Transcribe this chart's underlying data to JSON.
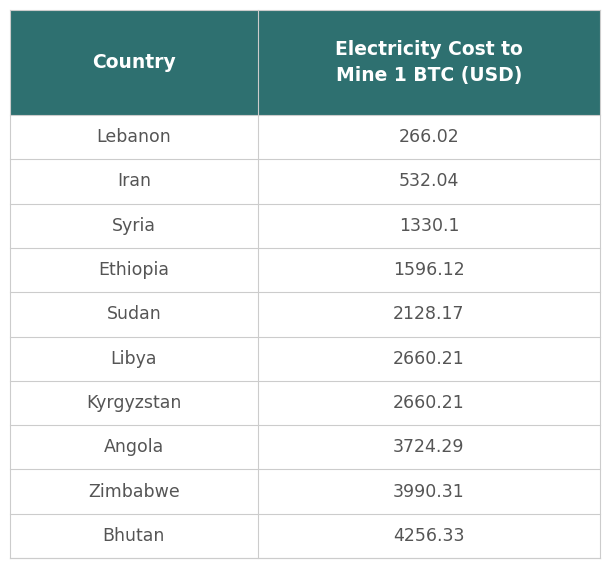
{
  "header": [
    "Country",
    "Electricity Cost to\nMine 1 BTC (USD)"
  ],
  "rows": [
    [
      "Lebanon",
      "266.02"
    ],
    [
      "Iran",
      "532.04"
    ],
    [
      "Syria",
      "1330.1"
    ],
    [
      "Ethiopia",
      "1596.12"
    ],
    [
      "Sudan",
      "2128.17"
    ],
    [
      "Libya",
      "2660.21"
    ],
    [
      "Kyrgyzstan",
      "2660.21"
    ],
    [
      "Angola",
      "3724.29"
    ],
    [
      "Zimbabwe",
      "3990.31"
    ],
    [
      "Bhutan",
      "4256.33"
    ]
  ],
  "header_bg_color": "#2e7070",
  "header_text_color": "#ffffff",
  "row_text_color": "#555555",
  "grid_color": "#cccccc",
  "bg_color": "#ffffff",
  "col_split": 0.42,
  "header_fontsize": 13.5,
  "row_fontsize": 12.5
}
